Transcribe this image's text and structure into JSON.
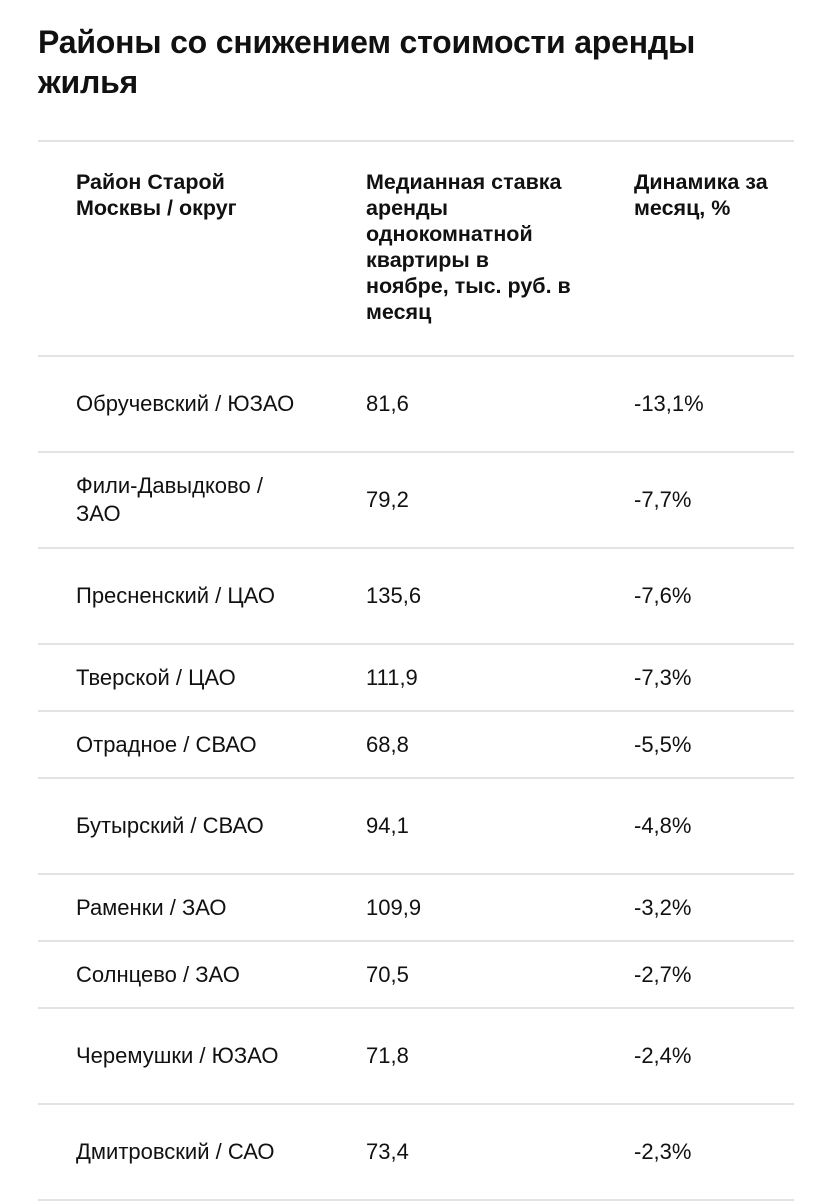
{
  "title": "Районы со снижением стоимости аренды жилья",
  "table": {
    "headers": [
      "Район Старой Москвы / округ",
      "Медианная ставка аренды однокомнатной квартиры в ноябре, тыс. руб. в месяц",
      "Динамика за месяц, %"
    ],
    "rows": [
      {
        "district": "Обручевский / ЮЗАО",
        "rate": "81,6",
        "change": "-13,1%"
      },
      {
        "district": "Фили-Давыдково / ЗАО",
        "rate": "79,2",
        "change": "-7,7%"
      },
      {
        "district": "Пресненский / ЦАО",
        "rate": "135,6",
        "change": "-7,6%"
      },
      {
        "district": "Тверской / ЦАО",
        "rate": "111,9",
        "change": "-7,3%"
      },
      {
        "district": "Отрадное / СВАО",
        "rate": "68,8",
        "change": "-5,5%"
      },
      {
        "district": "Бутырский / СВАО",
        "rate": "94,1",
        "change": "-4,8%"
      },
      {
        "district": "Раменки / ЗАО",
        "rate": "109,9",
        "change": "-3,2%"
      },
      {
        "district": "Солнцево / ЗАО",
        "rate": "70,5",
        "change": "-2,7%"
      },
      {
        "district": "Черемушки / ЮЗАО",
        "rate": "71,8",
        "change": "-2,4%"
      },
      {
        "district": "Дмитровский / САО",
        "rate": "73,4",
        "change": "-2,3%"
      }
    ]
  }
}
